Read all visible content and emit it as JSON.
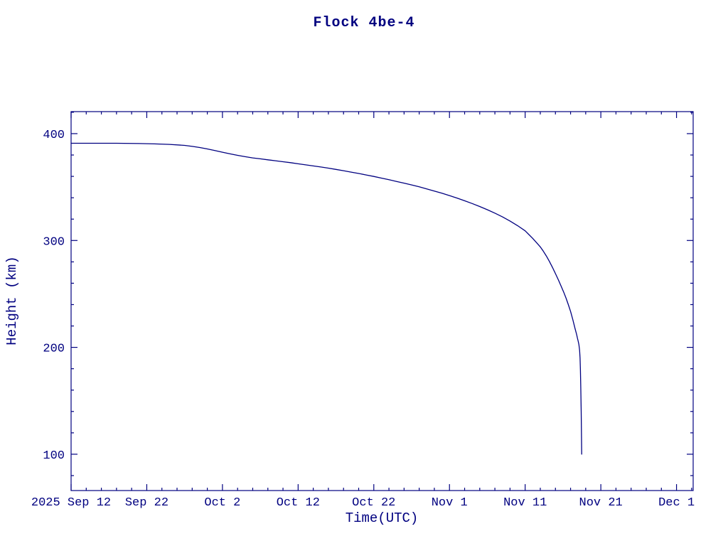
{
  "page": {
    "background": "#ffffff"
  },
  "chart_data": {
    "type": "line",
    "title": "Flock 4be-4",
    "xlabel": "Time(UTC)",
    "ylabel": "Height (km)",
    "x_axis_meaning": "days since 2025 Sep 12 (UTC)",
    "x_ticks": [
      0,
      10,
      20,
      30,
      40,
      50,
      60,
      70,
      80
    ],
    "x_ticklabels": [
      "2025 Sep 12",
      "Sep 22",
      "Oct 2",
      "Oct 12",
      "Oct 22",
      "Nov 1",
      "Nov 11",
      "Nov 21",
      "Dec 1"
    ],
    "x_minor_step": 2,
    "y_ticks": [
      100,
      200,
      300,
      400
    ],
    "y_ticklabels": [
      "100",
      "200",
      "300",
      "400"
    ],
    "y_minor_step": 20,
    "xlim": [
      0,
      82.2
    ],
    "ylim": [
      66,
      420.6
    ],
    "grid": false,
    "legend": "none",
    "line_color": "#000080",
    "axis_color": "#000080",
    "series": [
      {
        "name": "Flock 4be-4 height (km)",
        "points": [
          [
            0,
            391
          ],
          [
            3,
            391
          ],
          [
            6,
            391
          ],
          [
            9,
            390.7
          ],
          [
            11,
            390.4
          ],
          [
            13,
            389.9
          ],
          [
            15,
            389
          ],
          [
            16,
            388.1
          ],
          [
            17,
            387
          ],
          [
            18,
            385.7
          ],
          [
            19,
            384.2
          ],
          [
            20,
            382.6
          ],
          [
            21,
            381.1
          ],
          [
            22,
            379.7
          ],
          [
            23,
            378.4
          ],
          [
            24,
            377.3
          ],
          [
            25,
            376.4
          ],
          [
            26,
            375.5
          ],
          [
            27,
            374.6
          ],
          [
            28,
            373.7
          ],
          [
            29,
            372.8
          ],
          [
            30,
            371.8
          ],
          [
            31,
            370.8
          ],
          [
            32,
            369.8
          ],
          [
            33,
            368.8
          ],
          [
            34,
            367.7
          ],
          [
            35,
            366.5
          ],
          [
            36,
            365.3
          ],
          [
            37,
            364
          ],
          [
            38,
            362.7
          ],
          [
            39,
            361.3
          ],
          [
            40,
            359.9
          ],
          [
            41,
            358.4
          ],
          [
            42,
            356.9
          ],
          [
            43,
            355.3
          ],
          [
            44,
            353.7
          ],
          [
            45,
            352
          ],
          [
            46,
            350.2
          ],
          [
            47,
            348.3
          ],
          [
            48,
            346.3
          ],
          [
            49,
            344.2
          ],
          [
            50,
            342
          ],
          [
            51,
            339.7
          ],
          [
            52,
            337.2
          ],
          [
            53,
            334.6
          ],
          [
            54,
            331.8
          ],
          [
            55,
            328.8
          ],
          [
            56,
            325.6
          ],
          [
            57,
            322.1
          ],
          [
            58,
            318.2
          ],
          [
            59,
            313.9
          ],
          [
            60,
            309
          ],
          [
            60.5,
            305.5
          ],
          [
            61,
            302
          ],
          [
            61.5,
            298
          ],
          [
            62,
            294
          ],
          [
            62.4,
            290
          ],
          [
            62.8,
            285.5
          ],
          [
            63.2,
            280.5
          ],
          [
            63.6,
            275
          ],
          [
            64,
            269
          ],
          [
            64.4,
            263
          ],
          [
            64.8,
            256.5
          ],
          [
            65.1,
            251.5
          ],
          [
            65.4,
            246
          ],
          [
            65.7,
            240
          ],
          [
            66,
            233.5
          ],
          [
            66.3,
            226
          ],
          [
            66.6,
            217.5
          ],
          [
            66.8,
            212
          ],
          [
            66.9,
            209
          ],
          [
            67,
            206
          ],
          [
            67.1,
            202.5
          ],
          [
            67.2,
            197
          ],
          [
            67.25,
            190
          ],
          [
            67.3,
            179
          ],
          [
            67.35,
            163
          ],
          [
            67.4,
            140
          ],
          [
            67.45,
            112
          ],
          [
            67.47,
            100
          ]
        ]
      }
    ]
  }
}
